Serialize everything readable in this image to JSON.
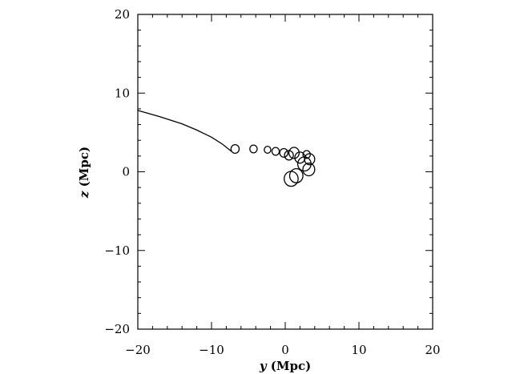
{
  "chart_data": {
    "type": "line",
    "title": "",
    "xlabel_var": "y",
    "xlabel_unit": " (Mpc)",
    "ylabel_var": "z",
    "ylabel_unit": " (Mpc)",
    "xlim": [
      -20,
      20
    ],
    "ylim": [
      -20,
      20
    ],
    "xticks": [
      -20,
      -10,
      0,
      10,
      20
    ],
    "yticks": [
      -20,
      -10,
      0,
      10,
      20
    ],
    "xtick_labels": [
      "−20",
      "−10",
      "0",
      "10",
      "20"
    ],
    "ytick_labels": [
      "−20",
      "−10",
      "0",
      "10",
      "20"
    ],
    "minor_tick_step": 2,
    "grid": false,
    "color": "#000000",
    "series": [
      {
        "trail": [
          [
            -20,
            7.8
          ],
          [
            -17,
            7.0
          ],
          [
            -14,
            6.1
          ],
          [
            -12,
            5.3
          ],
          [
            -10,
            4.4
          ],
          [
            -8.5,
            3.5
          ],
          [
            -7.3,
            2.6
          ]
        ],
        "loops": [
          [
            -6.8,
            2.9,
            0.55
          ],
          [
            -4.3,
            2.9,
            0.5
          ],
          [
            -2.4,
            2.8,
            0.45
          ],
          [
            -1.3,
            2.6,
            0.5
          ],
          [
            -0.2,
            2.4,
            0.55
          ],
          [
            0.5,
            2.1,
            0.6
          ],
          [
            1.2,
            2.4,
            0.7
          ],
          [
            2.0,
            1.8,
            0.7
          ],
          [
            2.6,
            1.0,
            0.9
          ],
          [
            3.2,
            0.3,
            0.8
          ],
          [
            3.3,
            1.6,
            0.7
          ],
          [
            2.9,
            2.2,
            0.5
          ],
          [
            1.5,
            -0.5,
            0.9
          ],
          [
            0.8,
            -0.9,
            0.95
          ]
        ]
      }
    ]
  }
}
